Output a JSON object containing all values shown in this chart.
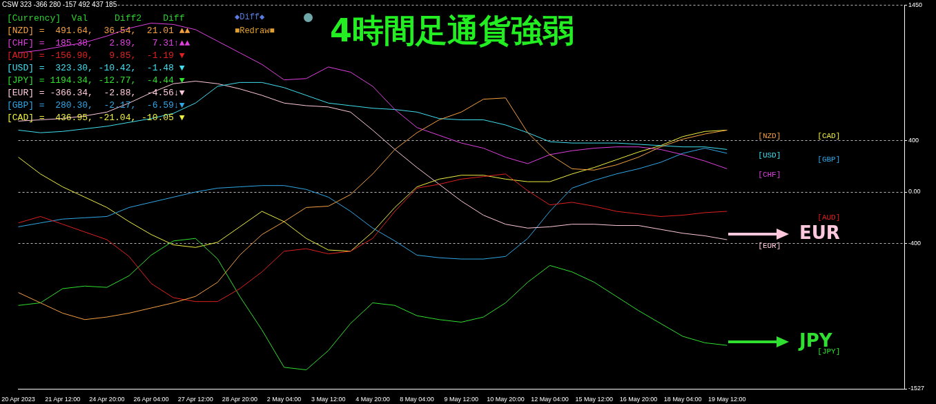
{
  "chart_data": {
    "type": "line",
    "title": "4時間足通貨強弱",
    "categories": [
      "20 Apr 2023",
      null,
      "21 Apr 12:00",
      null,
      "24 Apr 20:00",
      null,
      "26 Apr 04:00",
      null,
      "27 Apr 12:00",
      null,
      "28 Apr 20:00",
      null,
      "2 May 04:00",
      null,
      "3 May 12:00",
      null,
      "4 May 20:00",
      null,
      "8 May 04:00",
      null,
      "9 May 12:00",
      null,
      "10 May 20:00",
      null,
      "12 May 04:00",
      null,
      "15 May 12:00",
      null,
      "16 May 20:00",
      null,
      "18 May 04:00",
      null,
      "19 May 12:00",
      null,
      null,
      null,
      null,
      null,
      null,
      null,
      null
    ],
    "series": [
      {
        "name": "[NZD]",
        "color": "#f5a040",
        "values": [
          -780,
          -860,
          -940,
          -990,
          -970,
          -940,
          -900,
          -860,
          -810,
          -700,
          -490,
          -330,
          -230,
          -120,
          -110,
          -20,
          140,
          330,
          460,
          560,
          620,
          720,
          730,
          460,
          290,
          180,
          170,
          210,
          270,
          350,
          410,
          450,
          480,
          null,
          null,
          null,
          null,
          null,
          null,
          null,
          null
        ]
      },
      {
        "name": "[CHF]",
        "color": "#e040e0",
        "values": [
          1080,
          1100,
          1130,
          1160,
          1210,
          1270,
          1310,
          1300,
          1260,
          1170,
          1080,
          990,
          870,
          880,
          970,
          930,
          820,
          640,
          500,
          440,
          380,
          340,
          270,
          220,
          290,
          320,
          340,
          350,
          350,
          330,
          290,
          240,
          180,
          null,
          null,
          null,
          null,
          null,
          null,
          null,
          null
        ]
      },
      {
        "name": "[AUD]",
        "color": "#e02020",
        "values": [
          -240,
          -190,
          -250,
          -310,
          -370,
          -500,
          -710,
          -820,
          -850,
          -850,
          -750,
          -620,
          -460,
          -440,
          -480,
          -460,
          -360,
          -150,
          30,
          60,
          100,
          120,
          140,
          10,
          -100,
          -80,
          -110,
          -150,
          -170,
          -190,
          -180,
          -160,
          -150,
          null,
          null,
          null,
          null,
          null,
          null,
          null,
          null
        ]
      },
      {
        "name": "[USD]",
        "color": "#40e0f0",
        "values": [
          480,
          460,
          470,
          490,
          510,
          540,
          570,
          610,
          690,
          820,
          850,
          850,
          810,
          750,
          690,
          670,
          650,
          640,
          620,
          570,
          560,
          560,
          520,
          460,
          390,
          380,
          380,
          380,
          370,
          360,
          350,
          350,
          330,
          null,
          null,
          null,
          null,
          null,
          null,
          null,
          null
        ]
      },
      {
        "name": "[JPY]",
        "color": "#30e030",
        "values": [
          -880,
          -860,
          -750,
          -730,
          -740,
          -650,
          -490,
          -380,
          -360,
          -520,
          -810,
          -1070,
          -1360,
          -1380,
          -1230,
          -1020,
          -860,
          -880,
          -960,
          -990,
          -1010,
          -970,
          -860,
          -700,
          -570,
          -620,
          -700,
          -810,
          -920,
          -1020,
          -1120,
          -1170,
          -1190,
          null,
          null,
          null,
          null,
          null,
          null,
          null,
          null
        ]
      },
      {
        "name": "[EUR]",
        "color": "#ffc8dc",
        "values": [
          550,
          560,
          570,
          590,
          620,
          690,
          770,
          840,
          860,
          840,
          800,
          750,
          690,
          670,
          660,
          620,
          480,
          330,
          190,
          60,
          -70,
          -180,
          -250,
          -280,
          -270,
          -250,
          -250,
          -260,
          -260,
          -290,
          -320,
          -340,
          -370,
          null,
          null,
          null,
          null,
          null,
          null,
          null,
          null
        ]
      },
      {
        "name": "[GBP]",
        "color": "#30a8e8",
        "values": [
          -270,
          -240,
          -210,
          -200,
          -190,
          -120,
          -80,
          -40,
          0,
          30,
          40,
          50,
          50,
          20,
          -40,
          -150,
          -280,
          -380,
          -490,
          -510,
          -520,
          -520,
          -500,
          -360,
          -150,
          30,
          90,
          140,
          180,
          230,
          300,
          340,
          300,
          null,
          null,
          null,
          null,
          null,
          null,
          null,
          null
        ]
      },
      {
        "name": "[CAD]",
        "color": "#f0f040",
        "values": [
          270,
          140,
          40,
          -40,
          -120,
          -230,
          -330,
          -410,
          -430,
          -390,
          -270,
          -150,
          -230,
          -360,
          -450,
          -460,
          -310,
          -120,
          40,
          100,
          130,
          130,
          100,
          80,
          80,
          140,
          190,
          250,
          310,
          360,
          430,
          470,
          480,
          null,
          null,
          null,
          null,
          null,
          null,
          null,
          null
        ]
      }
    ],
    "ylim": [
      -1527,
      1450
    ],
    "yticks": [
      1450,
      400,
      {
        "value": 0,
        "label": "0.00"
      },
      -400,
      -1527
    ],
    "grid": "y",
    "annotations": [
      "CSW 323 -366 280 -157 492 437 185",
      "[Currency]  Val     Diff2    Diff",
      "[NZD] =  491.64,  36.54,  21.01 ▲▲",
      "[CHF] =  185.38,   2.89,   7.31↑▲▲",
      "[AUD] = -156.90,   9.85,  -1.19 ▼",
      "[USD] =  323.30, -10.42,  -1.48 ▼",
      "[JPY] = 1194.34, -12.77,  -4.44 ▼",
      "[EUR] = -366.34,  -2.88,  -4.56↓▼",
      "[GBP] =  280.30,  -2.17,  -6.59↓▼",
      "[CAD] =  436.95, -21.04, -10.05 ▼",
      "◆Diff◆",
      "■Redraw■",
      "EUR",
      "JPY"
    ]
  }
}
